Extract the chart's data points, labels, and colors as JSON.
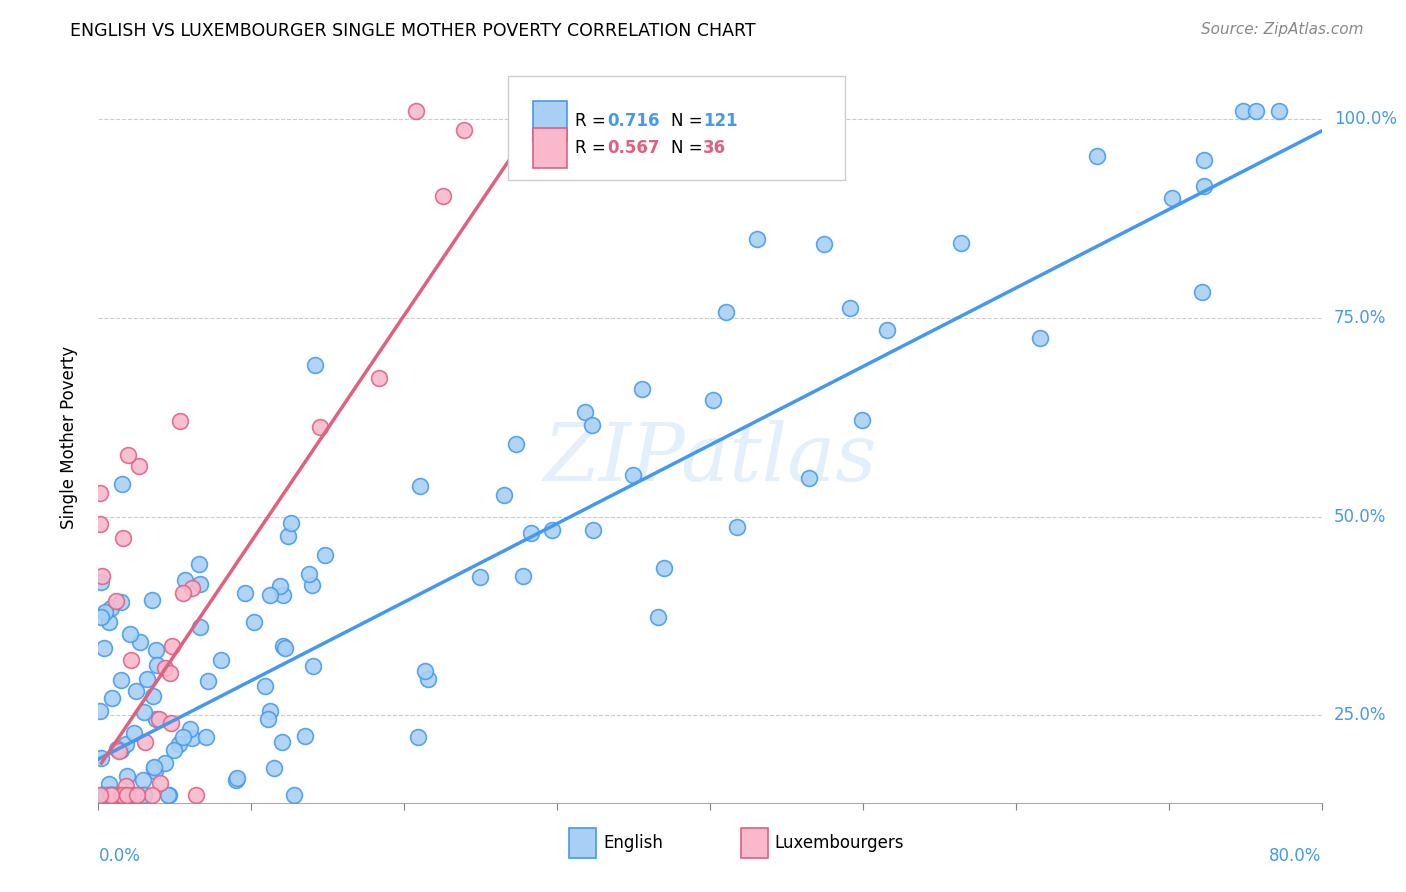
{
  "title": "ENGLISH VS LUXEMBOURGER SINGLE MOTHER POVERTY CORRELATION CHART",
  "source": "Source: ZipAtlas.com",
  "ylabel": "Single Mother Poverty",
  "ytick_labels": [
    "25.0%",
    "50.0%",
    "75.0%",
    "100.0%"
  ],
  "ytick_values": [
    0.25,
    0.5,
    0.75,
    1.0
  ],
  "xlim": [
    0.0,
    0.8
  ],
  "ylim": [
    0.14,
    1.06
  ],
  "english_color": "#a8d0f5",
  "english_line_color": "#4499ee",
  "luxembourger_color": "#f9b8cc",
  "luxembourger_line_color": "#e06080",
  "watermark": "ZIPatlas",
  "english_trend_x": [
    0.0,
    0.8
  ],
  "english_trend_y": [
    0.195,
    0.985
  ],
  "luxembourger_trend_x": [
    0.002,
    0.285
  ],
  "luxembourger_trend_y": [
    0.19,
    0.995
  ]
}
